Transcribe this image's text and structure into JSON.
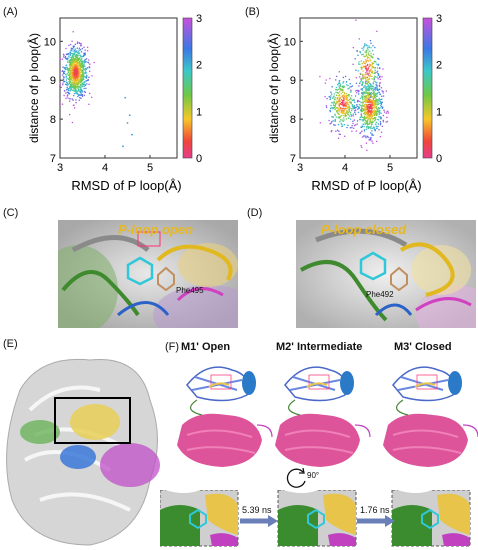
{
  "panels": {
    "A": "(A)",
    "B": "(B)",
    "C": "(C)",
    "D": "(D)",
    "E": "(E)",
    "F": "(F)"
  },
  "chart_data": [
    {
      "type": "scatter",
      "panel": "A",
      "xlabel": "RMSD of P loop(Å)",
      "ylabel": "distance of p loop(Å)",
      "xlim": [
        3,
        5.6
      ],
      "ylim": [
        7,
        10.6
      ],
      "xticks": [
        "3",
        "4",
        "5"
      ],
      "yticks": [
        "7",
        "8",
        "9",
        "10"
      ],
      "colorbar": {
        "min": 0,
        "max": 3,
        "ticks": [
          "0",
          "1",
          "2",
          "3"
        ]
      },
      "clusters": [
        {
          "cx": 3.35,
          "cy": 9.2,
          "sx": 0.13,
          "sy": 0.32,
          "n": 900
        }
      ],
      "sparse": [
        [
          4.45,
          8.55
        ],
        [
          4.55,
          8.1
        ],
        [
          4.6,
          7.6
        ],
        [
          4.4,
          7.3
        ],
        [
          4.5,
          7.9
        ]
      ]
    },
    {
      "type": "scatter",
      "panel": "B",
      "xlabel": "RMSD of P loop(Å)",
      "ylabel": "distance of p loop(Å)",
      "xlim": [
        3,
        5.6
      ],
      "ylim": [
        7,
        10.6
      ],
      "xticks": [
        "3",
        "4",
        "5"
      ],
      "yticks": [
        "7",
        "8",
        "9",
        "10"
      ],
      "colorbar": {
        "min": 0,
        "max": 3,
        "ticks": [
          "0",
          "1",
          "2",
          "3"
        ]
      },
      "clusters": [
        {
          "cx": 4.55,
          "cy": 8.3,
          "sx": 0.14,
          "sy": 0.35,
          "n": 650
        },
        {
          "cx": 3.95,
          "cy": 8.4,
          "sx": 0.15,
          "sy": 0.33,
          "n": 350
        },
        {
          "cx": 4.5,
          "cy": 9.3,
          "sx": 0.13,
          "sy": 0.35,
          "n": 220
        }
      ],
      "sparse": []
    }
  ],
  "structures": {
    "C": {
      "caption": "P-loop open",
      "residue": "Phe495"
    },
    "D": {
      "caption": "P-loop closed",
      "residue": "Phe492"
    },
    "F": {
      "states": [
        "M1' Open",
        "M2' Intermediate",
        "M3' Closed"
      ],
      "rotation": "90°",
      "transitions": [
        "5.39 ns",
        "1.76 ns"
      ]
    }
  },
  "colors": {
    "pink": "#d7368a",
    "yellow": "#e8c44a",
    "green": "#3f8a2e",
    "blue": "#2a62c8",
    "magenta": "#c040c0",
    "surface": "#d8d8d8"
  }
}
